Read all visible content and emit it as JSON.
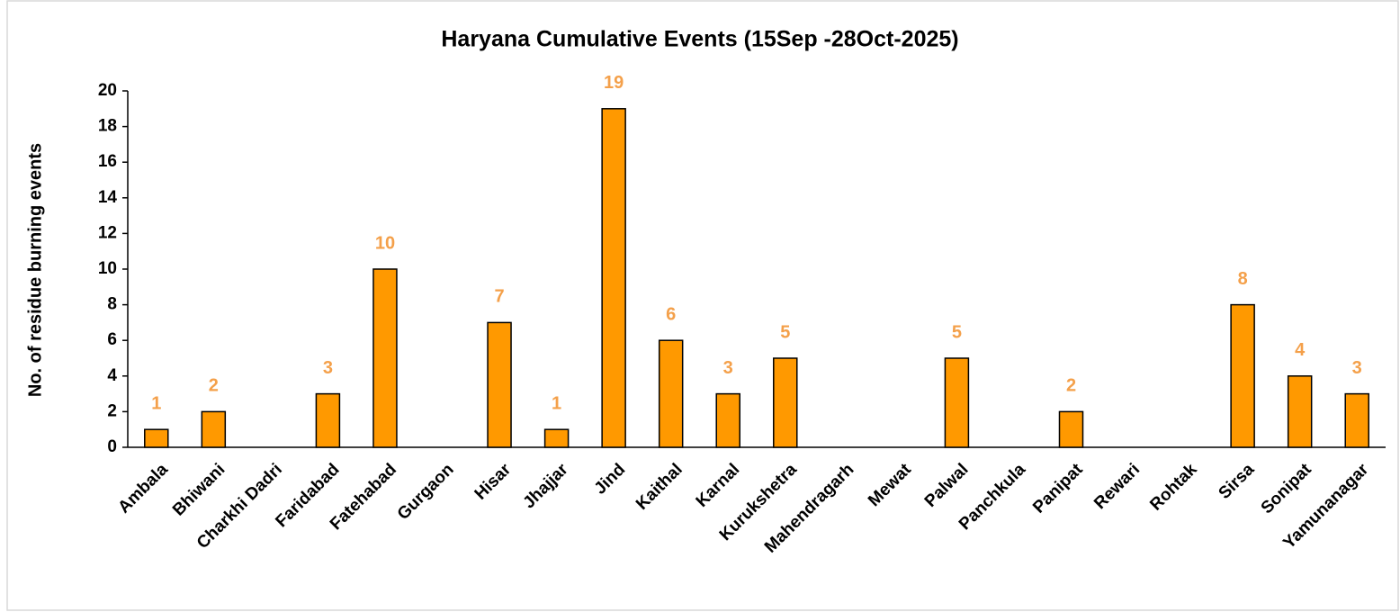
{
  "chart_data": {
    "type": "bar",
    "title": "Haryana Cumulative Events (15Sep -28Oct-2025)",
    "y_label": "No. of residue burning events",
    "categories": [
      "Ambala",
      "Bhiwani",
      "Charkhi Dadri",
      "Faridabad",
      "Fatehabad",
      "Gurgaon",
      "Hisar",
      "Jhajjar",
      "Jind",
      "Kaithal",
      "Karnal",
      "Kurukshetra",
      "Mahendragarh",
      "Mewat",
      "Palwal",
      "Panchkula",
      "Panipat",
      "Rewari",
      "Rohtak",
      "Sirsa",
      "Sonipat",
      "Yamunanagar"
    ],
    "values": [
      1,
      2,
      0,
      3,
      10,
      0,
      7,
      1,
      19,
      6,
      3,
      5,
      0,
      0,
      5,
      0,
      2,
      0,
      0,
      8,
      4,
      3
    ],
    "color": "#ff9900",
    "label_color": "#f4a04a",
    "ylim": [
      0,
      20
    ],
    "yticks": [
      0,
      2,
      4,
      6,
      8,
      10,
      12,
      14,
      16,
      18,
      20
    ],
    "grid": false
  }
}
